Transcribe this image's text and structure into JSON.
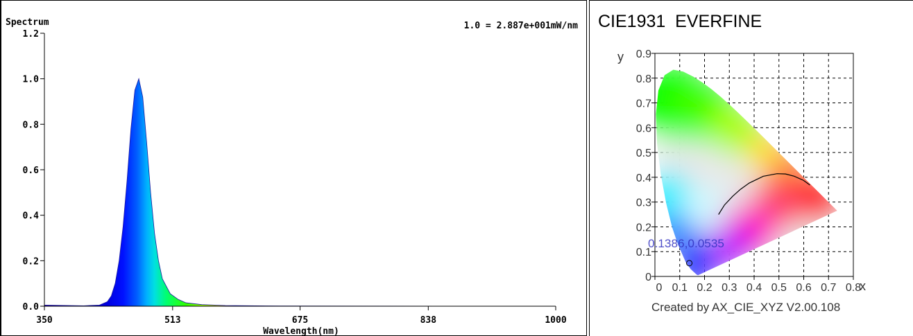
{
  "chart_data": [
    {
      "type": "area",
      "title": "Spectrum",
      "scale_note": "1.0 = 2.887e+001mW/nm",
      "xlabel": "Wavelength(nm)",
      "ylabel": "",
      "xlim": [
        350,
        1000
      ],
      "ylim": [
        0,
        1.2
      ],
      "x_ticks": [
        350,
        513,
        675,
        838,
        1000
      ],
      "x_tick_labels": [
        "350",
        "513",
        "675",
        "838",
        "1000"
      ],
      "y_ticks": [
        0,
        0.2,
        0.4,
        0.6,
        0.8,
        1.0,
        1.2
      ],
      "y_tick_labels": [
        "0.0",
        "0.2",
        "0.4",
        "0.6",
        "0.8",
        "1.0",
        "1.2"
      ],
      "grid": false,
      "x": [
        350,
        400,
        420,
        430,
        435,
        440,
        445,
        450,
        455,
        460,
        465,
        470,
        475,
        480,
        485,
        490,
        495,
        500,
        510,
        520,
        530,
        550,
        580,
        650,
        1000
      ],
      "y": [
        0.005,
        0.002,
        0.005,
        0.02,
        0.045,
        0.1,
        0.2,
        0.35,
        0.55,
        0.78,
        0.95,
        1.0,
        0.92,
        0.72,
        0.5,
        0.32,
        0.2,
        0.12,
        0.055,
        0.03,
        0.015,
        0.007,
        0.003,
        0.001,
        0.0
      ]
    },
    {
      "type": "scatter",
      "title": "CIE1931  EVERFINE",
      "footer": "Created by AX_CIE_XYZ V2.00.108",
      "xlabel": "x",
      "ylabel": "y",
      "xlim": [
        0,
        0.8
      ],
      "ylim": [
        0,
        0.9
      ],
      "x_ticks": [
        0,
        0.1,
        0.2,
        0.3,
        0.4,
        0.5,
        0.6,
        0.7,
        0.8
      ],
      "x_tick_labels": [
        "0",
        "0.1",
        "0.2",
        "0.3",
        "0.4",
        "0.5",
        "0.6",
        "0.7",
        "0.8"
      ],
      "y_ticks": [
        0,
        0.1,
        0.2,
        0.3,
        0.4,
        0.5,
        0.6,
        0.7,
        0.8,
        0.9
      ],
      "y_tick_labels": [
        "0",
        "0.1",
        "0.2",
        "0.3",
        "0.4",
        "0.5",
        "0.6",
        "0.7",
        "0.8",
        "0.9"
      ],
      "grid": true,
      "point": {
        "x": 0.1386,
        "y": 0.0535,
        "label": "0.1386,0.0535"
      },
      "locus": [
        [
          0.1741,
          0.005
        ],
        [
          0.1736,
          0.0049
        ],
        [
          0.1703,
          0.0058
        ],
        [
          0.1666,
          0.0089
        ],
        [
          0.1644,
          0.0109
        ],
        [
          0.1611,
          0.0138
        ],
        [
          0.1566,
          0.0177
        ],
        [
          0.144,
          0.0297
        ],
        [
          0.1241,
          0.0578
        ],
        [
          0.0913,
          0.1327
        ],
        [
          0.0687,
          0.2007
        ],
        [
          0.0454,
          0.295
        ],
        [
          0.0235,
          0.4127
        ],
        [
          0.0082,
          0.5384
        ],
        [
          0.0039,
          0.6548
        ],
        [
          0.0139,
          0.7502
        ],
        [
          0.0389,
          0.812
        ],
        [
          0.0743,
          0.8338
        ],
        [
          0.1142,
          0.8262
        ],
        [
          0.1547,
          0.8059
        ],
        [
          0.1929,
          0.7816
        ],
        [
          0.2296,
          0.7543
        ],
        [
          0.2658,
          0.7243
        ],
        [
          0.3016,
          0.6923
        ],
        [
          0.3373,
          0.6589
        ],
        [
          0.3731,
          0.6245
        ],
        [
          0.4087,
          0.5896
        ],
        [
          0.4441,
          0.5547
        ],
        [
          0.4788,
          0.5202
        ],
        [
          0.5125,
          0.4866
        ],
        [
          0.5448,
          0.4544
        ],
        [
          0.5752,
          0.4242
        ],
        [
          0.6029,
          0.3965
        ],
        [
          0.627,
          0.3725
        ],
        [
          0.6482,
          0.3514
        ],
        [
          0.6658,
          0.334
        ],
        [
          0.6801,
          0.3197
        ],
        [
          0.6915,
          0.3083
        ],
        [
          0.7006,
          0.2993
        ],
        [
          0.7079,
          0.292
        ],
        [
          0.714,
          0.2859
        ],
        [
          0.719,
          0.2809
        ],
        [
          0.723,
          0.277
        ],
        [
          0.726,
          0.274
        ],
        [
          0.7347,
          0.2653
        ]
      ],
      "planckian": [
        [
          0.2565,
          0.2498
        ],
        [
          0.2806,
          0.2883
        ],
        [
          0.3138,
          0.3236
        ],
        [
          0.3451,
          0.3516
        ],
        [
          0.3805,
          0.3768
        ],
        [
          0.4369,
          0.4041
        ],
        [
          0.4926,
          0.4145
        ],
        [
          0.5265,
          0.4133
        ],
        [
          0.5612,
          0.4044
        ],
        [
          0.5985,
          0.3879
        ],
        [
          0.6251,
          0.3686
        ]
      ]
    }
  ]
}
